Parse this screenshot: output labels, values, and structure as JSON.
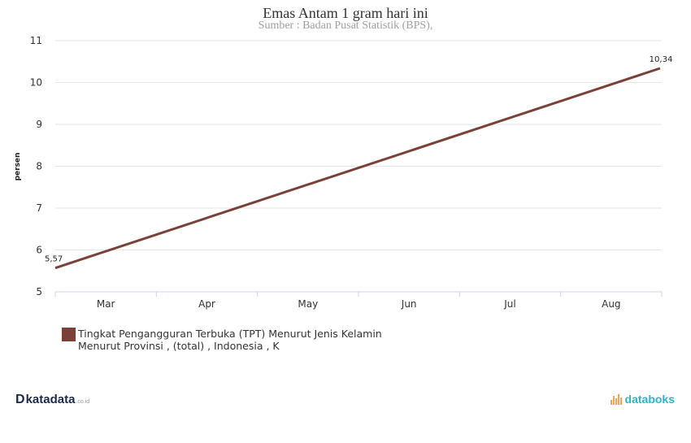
{
  "chart_data": {
    "type": "line",
    "title": "Emas Antam 1 gram  hari ini",
    "subtitle": "Sumber : Badan Pusat Statistik (BPS),",
    "xlabel": "",
    "ylabel": "persen",
    "ylim": [
      5,
      11
    ],
    "yticks": [
      "5",
      "6",
      "7",
      "8",
      "9",
      "10",
      "11"
    ],
    "x_categories": [
      "Mar",
      "Apr",
      "May",
      "Jun",
      "Jul",
      "Aug"
    ],
    "series": [
      {
        "name": "Tingkat Pengangguran Terbuka (TPT) Menurut Jenis Kelamin\nMenurut Provinsi , (total)  , Indonesia , K",
        "color": "#7b4139",
        "points": [
          {
            "x": "start",
            "y": 5.57,
            "label": "5,57"
          },
          {
            "x": "end",
            "y": 10.34,
            "label": "10,34"
          }
        ]
      }
    ],
    "grid": true,
    "legend_position": "bottom-left"
  },
  "branding": {
    "left_mark": "D",
    "left_name": "katadata",
    "left_tld": ".co.id",
    "right_name": "databoks",
    "left_color": "#1c2a4a",
    "right_color": "#2bb5c8",
    "icon": "databoks-bars-icon"
  }
}
